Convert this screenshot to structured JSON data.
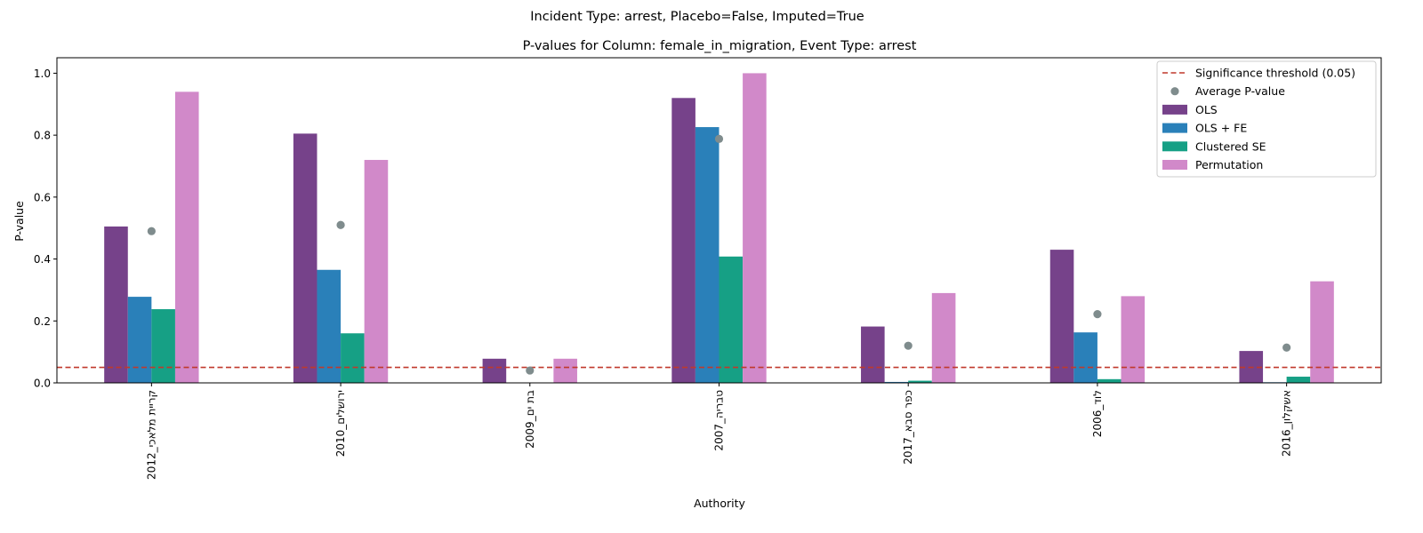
{
  "suptitle": "Incident Type: arrest, Placebo=False, Imputed=True",
  "chart_data": {
    "type": "bar",
    "title": "P-values for Column: female_in_migration, Event Type: arrest",
    "xlabel": "Authority",
    "ylabel": "P-value",
    "ylim": [
      0,
      1.05
    ],
    "yticks": [
      "0.0",
      "0.2",
      "0.4",
      "0.6",
      "0.8",
      "1.0"
    ],
    "categories": [
      "קריית מלאכי_2012",
      "ירושלים_2010",
      "בת ים_2009",
      "טבריה_2007",
      "כפר סבא_2017",
      "לוד_2006",
      "אשקלון_2016"
    ],
    "series": [
      {
        "name": "OLS",
        "color": "#76428a",
        "values": [
          0.505,
          0.805,
          0.078,
          0.92,
          0.182,
          0.43,
          0.103
        ]
      },
      {
        "name": "OLS + FE",
        "color": "#2a80b9",
        "values": [
          0.278,
          0.365,
          0.0,
          0.826,
          0.003,
          0.163,
          0.002
        ]
      },
      {
        "name": "Clustered SE",
        "color": "#16a085",
        "values": [
          0.238,
          0.16,
          0.0,
          0.408,
          0.007,
          0.012,
          0.02
        ]
      },
      {
        "name": "Permutation",
        "color": "#d189c9",
        "values": [
          0.94,
          0.72,
          0.078,
          1.0,
          0.29,
          0.28,
          0.328
        ]
      }
    ],
    "average": {
      "name": "Average P-value",
      "color": "#7f8c8d",
      "values": [
        0.49,
        0.51,
        0.04,
        0.788,
        0.12,
        0.222,
        0.114
      ]
    },
    "threshold": {
      "name": "Significance threshold (0.05)",
      "value": 0.05,
      "color": "#c0392b"
    },
    "legend_position": "top-right",
    "grid": false
  }
}
